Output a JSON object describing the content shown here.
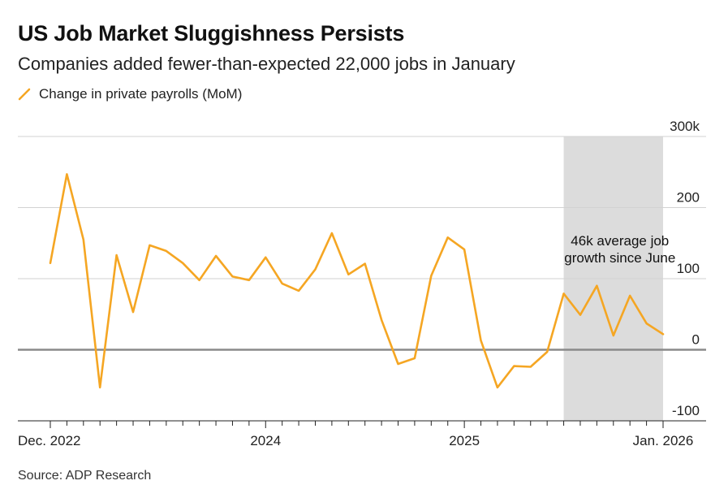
{
  "title": "US Job Market Sluggishness Persists",
  "subtitle": "Companies added fewer-than-expected 22,000 jobs in January",
  "legend": {
    "label": "Change in private payrolls (MoM)",
    "color": "#f5a623"
  },
  "source": "Source: ADP Research",
  "chart_data": {
    "type": "line",
    "series": [
      {
        "name": "Change in private payrolls (MoM)",
        "color": "#f5a623",
        "values": [
          122,
          247,
          155,
          -53,
          133,
          53,
          147,
          139,
          122,
          98,
          132,
          103,
          98,
          130,
          93,
          83,
          113,
          164,
          106,
          121,
          42,
          -20,
          -12,
          104,
          158,
          141,
          13,
          -53,
          -23,
          -24,
          -3,
          79,
          49,
          90,
          20,
          76,
          37,
          22
        ]
      }
    ],
    "x_labels": [
      {
        "index": 0,
        "label": "Dec. 2022"
      },
      {
        "index": 13,
        "label": "2024"
      },
      {
        "index": 25,
        "label": "2025"
      },
      {
        "index": 37,
        "label": "Jan. 2026"
      }
    ],
    "y_ticks": [
      {
        "value": -100,
        "label": "-100"
      },
      {
        "value": 0,
        "label": "0"
      },
      {
        "value": 100,
        "label": "100"
      },
      {
        "value": 200,
        "label": "200"
      },
      {
        "value": 300,
        "label": "300k"
      }
    ],
    "ylim": [
      -100,
      300
    ],
    "shaded_region": {
      "start_index": 31,
      "end_index": 37,
      "color": "#dcdcdc"
    },
    "annotation": {
      "lines": [
        "46k average job",
        "growth since June"
      ]
    },
    "grid": true
  }
}
